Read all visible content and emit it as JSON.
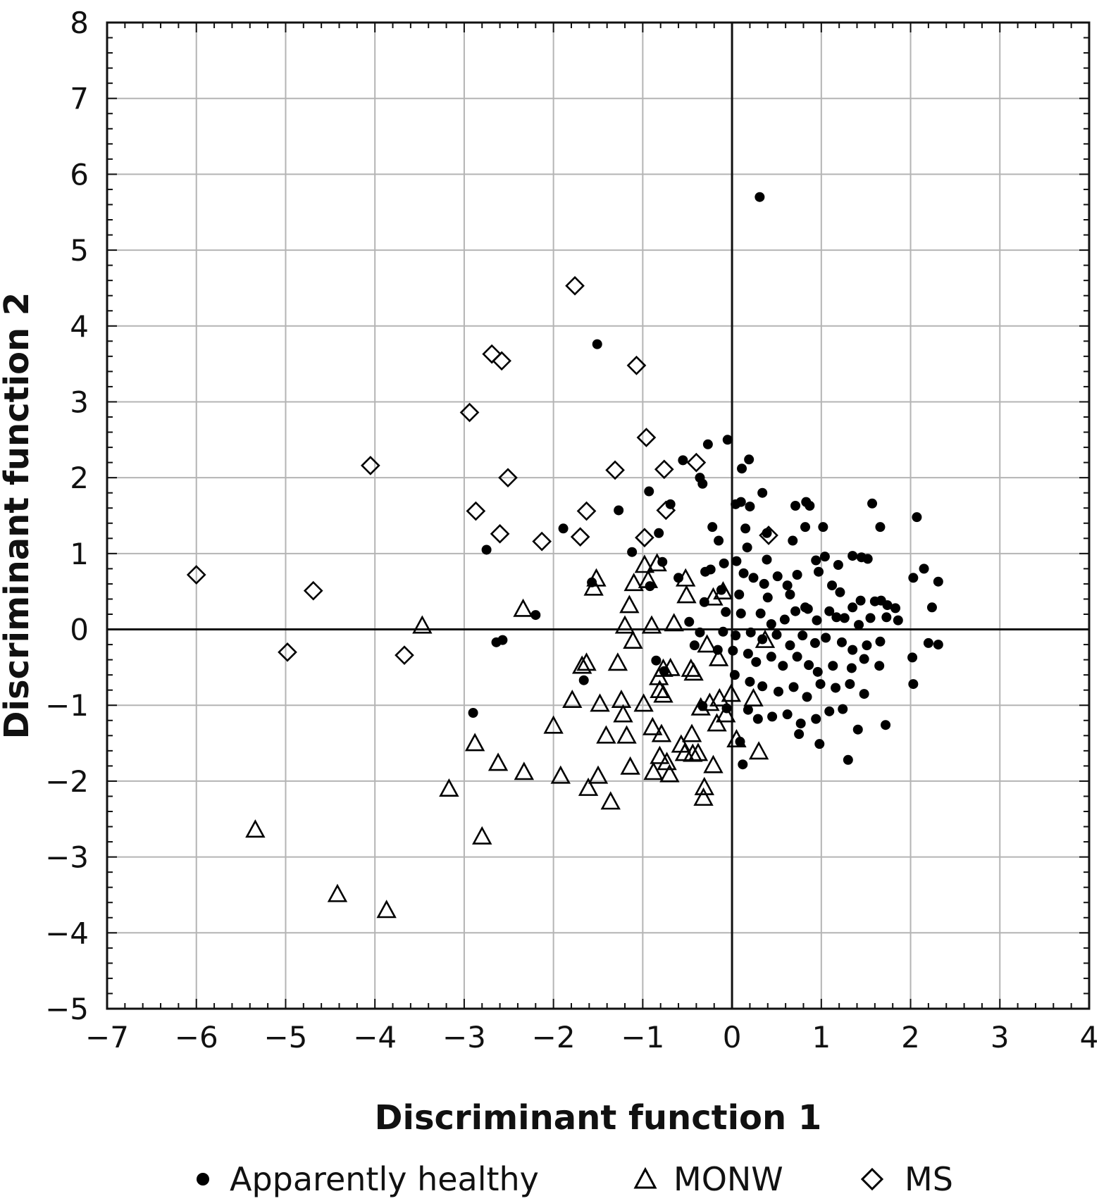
{
  "chart_data": {
    "type": "scatter",
    "title": "",
    "xlabel": "Discriminant function 1",
    "ylabel": "Discriminant function 2",
    "xlim": [
      -7,
      4
    ],
    "ylim": [
      -5,
      8
    ],
    "xticks": [
      -7,
      -6,
      -5,
      -4,
      -3,
      -2,
      -1,
      0,
      1,
      2,
      3,
      4
    ],
    "yticks": [
      -5,
      -4,
      -3,
      -2,
      -1,
      0,
      1,
      2,
      3,
      4,
      5,
      6,
      7,
      8
    ],
    "xtick_labels": [
      "−7",
      "−6",
      "−5",
      "−4",
      "−3",
      "−2",
      "−1",
      "0",
      "1",
      "2",
      "3",
      "4"
    ],
    "ytick_labels": [
      "−5",
      "−4",
      "−3",
      "−2",
      "−1",
      "0",
      "1",
      "2",
      "3",
      "4",
      "5",
      "6",
      "7",
      "8"
    ],
    "grid": true,
    "zero_lines": true,
    "legend_position": "bottom",
    "colors": {
      "marker": "#000000",
      "grid": "#b4b4b4",
      "axis": "#111111"
    },
    "series": [
      {
        "name": "Apparently healthy",
        "marker": "filled-circle",
        "points": [
          [
            0.31,
            5.7
          ],
          [
            -1.51,
            3.76
          ],
          [
            -0.27,
            2.44
          ],
          [
            -0.05,
            2.5
          ],
          [
            -0.55,
            2.23
          ],
          [
            0.19,
            2.24
          ],
          [
            0.11,
            2.12
          ],
          [
            -0.36,
            2.0
          ],
          [
            -0.33,
            1.92
          ],
          [
            -0.93,
            1.82
          ],
          [
            0.34,
            1.8
          ],
          [
            0.2,
            1.62
          ],
          [
            -0.69,
            1.65
          ],
          [
            0.1,
            1.68
          ],
          [
            0.04,
            1.65
          ],
          [
            -1.27,
            1.57
          ],
          [
            -0.82,
            1.27
          ],
          [
            -0.22,
            1.35
          ],
          [
            0.15,
            1.33
          ],
          [
            0.87,
            1.63
          ],
          [
            0.83,
            1.68
          ],
          [
            0.71,
            1.63
          ],
          [
            1.57,
            1.66
          ],
          [
            2.07,
            1.48
          ],
          [
            1.66,
            1.35
          ],
          [
            1.02,
            1.35
          ],
          [
            0.82,
            1.35
          ],
          [
            0.68,
            1.17
          ],
          [
            0.39,
            1.27
          ],
          [
            -1.89,
            1.33
          ],
          [
            -2.75,
            1.05
          ],
          [
            -1.12,
            1.02
          ],
          [
            -0.15,
            1.17
          ],
          [
            0.17,
            1.08
          ],
          [
            0.39,
            0.92
          ],
          [
            0.05,
            0.9
          ],
          [
            -0.09,
            0.87
          ],
          [
            -0.24,
            0.79
          ],
          [
            -0.78,
            0.89
          ],
          [
            -0.6,
            0.68
          ],
          [
            -0.3,
            0.76
          ],
          [
            0.13,
            0.74
          ],
          [
            0.24,
            0.68
          ],
          [
            0.36,
            0.6
          ],
          [
            0.51,
            0.7
          ],
          [
            0.62,
            0.58
          ],
          [
            0.73,
            0.72
          ],
          [
            0.94,
            0.91
          ],
          [
            1.04,
            0.96
          ],
          [
            1.19,
            0.85
          ],
          [
            1.35,
            0.97
          ],
          [
            1.45,
            0.95
          ],
          [
            1.52,
            0.93
          ],
          [
            2.15,
            0.8
          ],
          [
            2.03,
            0.68
          ],
          [
            2.31,
            0.63
          ],
          [
            0.97,
            0.76
          ],
          [
            1.12,
            0.58
          ],
          [
            1.21,
            0.49
          ],
          [
            1.44,
            0.38
          ],
          [
            1.6,
            0.37
          ],
          [
            1.67,
            0.38
          ],
          [
            1.74,
            0.32
          ],
          [
            1.83,
            0.28
          ],
          [
            2.24,
            0.29
          ],
          [
            1.35,
            0.29
          ],
          [
            1.17,
            0.16
          ],
          [
            0.82,
            0.29
          ],
          [
            0.65,
            0.46
          ],
          [
            0.4,
            0.42
          ],
          [
            0.08,
            0.46
          ],
          [
            -0.12,
            0.52
          ],
          [
            -0.31,
            0.36
          ],
          [
            -0.07,
            0.23
          ],
          [
            0.1,
            0.21
          ],
          [
            0.32,
            0.21
          ],
          [
            0.44,
            0.07
          ],
          [
            0.59,
            0.13
          ],
          [
            0.71,
            0.24
          ],
          [
            0.85,
            0.27
          ],
          [
            0.95,
            0.12
          ],
          [
            1.09,
            0.24
          ],
          [
            1.26,
            0.15
          ],
          [
            1.42,
            0.06
          ],
          [
            1.55,
            0.15
          ],
          [
            1.73,
            0.16
          ],
          [
            1.86,
            0.12
          ],
          [
            -1.57,
            0.62
          ],
          [
            -0.92,
            0.57
          ],
          [
            -2.2,
            0.19
          ],
          [
            -0.48,
            0.1
          ],
          [
            -0.36,
            -0.04
          ],
          [
            -0.1,
            -0.03
          ],
          [
            0.04,
            -0.08
          ],
          [
            0.21,
            -0.04
          ],
          [
            0.34,
            -0.13
          ],
          [
            0.5,
            -0.07
          ],
          [
            0.65,
            -0.21
          ],
          [
            0.79,
            -0.08
          ],
          [
            0.93,
            -0.18
          ],
          [
            1.05,
            -0.11
          ],
          [
            1.23,
            -0.17
          ],
          [
            1.35,
            -0.27
          ],
          [
            1.51,
            -0.21
          ],
          [
            1.66,
            -0.16
          ],
          [
            2.2,
            -0.18
          ],
          [
            2.31,
            -0.2
          ],
          [
            -2.64,
            -0.17
          ],
          [
            -2.57,
            -0.14
          ],
          [
            -0.42,
            -0.21
          ],
          [
            -0.16,
            -0.27
          ],
          [
            0.01,
            -0.28
          ],
          [
            0.18,
            -0.32
          ],
          [
            0.27,
            -0.43
          ],
          [
            0.44,
            -0.36
          ],
          [
            0.57,
            -0.48
          ],
          [
            0.73,
            -0.36
          ],
          [
            0.86,
            -0.47
          ],
          [
            0.96,
            -0.56
          ],
          [
            1.13,
            -0.48
          ],
          [
            1.34,
            -0.51
          ],
          [
            1.48,
            -0.39
          ],
          [
            1.65,
            -0.48
          ],
          [
            2.02,
            -0.37
          ],
          [
            -0.85,
            -0.41
          ],
          [
            -1.66,
            -0.67
          ],
          [
            -0.76,
            -0.55
          ],
          [
            0.03,
            -0.6
          ],
          [
            0.2,
            -0.69
          ],
          [
            0.34,
            -0.75
          ],
          [
            0.52,
            -0.82
          ],
          [
            0.69,
            -0.76
          ],
          [
            0.84,
            -0.89
          ],
          [
            0.99,
            -0.72
          ],
          [
            1.16,
            -0.77
          ],
          [
            1.32,
            -0.72
          ],
          [
            1.48,
            -0.85
          ],
          [
            2.03,
            -0.72
          ],
          [
            -2.9,
            -1.1
          ],
          [
            -0.33,
            -1.01
          ],
          [
            -0.06,
            -1.04
          ],
          [
            0.18,
            -1.06
          ],
          [
            0.29,
            -1.18
          ],
          [
            0.45,
            -1.15
          ],
          [
            0.62,
            -1.12
          ],
          [
            0.77,
            -1.24
          ],
          [
            0.94,
            -1.18
          ],
          [
            1.09,
            -1.08
          ],
          [
            1.24,
            -1.05
          ],
          [
            1.41,
            -1.32
          ],
          [
            1.72,
            -1.26
          ],
          [
            0.09,
            -1.48
          ],
          [
            0.75,
            -1.38
          ],
          [
            0.98,
            -1.51
          ],
          [
            0.12,
            -1.78
          ],
          [
            1.3,
            -1.72
          ]
        ]
      },
      {
        "name": "MONW",
        "marker": "open-triangle",
        "points": [
          [
            -0.98,
            0.85
          ],
          [
            -0.84,
            0.87
          ],
          [
            -0.94,
            0.65
          ],
          [
            -0.52,
            0.67
          ],
          [
            -1.52,
            0.67
          ],
          [
            -1.55,
            0.55
          ],
          [
            -1.1,
            0.61
          ],
          [
            -0.51,
            0.45
          ],
          [
            -0.21,
            0.42
          ],
          [
            -0.1,
            0.5
          ],
          [
            -2.34,
            0.27
          ],
          [
            -1.15,
            0.32
          ],
          [
            -0.9,
            0.05
          ],
          [
            -0.65,
            0.08
          ],
          [
            -3.47,
            0.05
          ],
          [
            -1.2,
            0.05
          ],
          [
            -1.11,
            -0.15
          ],
          [
            -0.28,
            -0.2
          ],
          [
            -0.15,
            -0.38
          ],
          [
            0.37,
            -0.14
          ],
          [
            -1.63,
            -0.44
          ],
          [
            -1.68,
            -0.48
          ],
          [
            -1.28,
            -0.44
          ],
          [
            -0.77,
            -0.52
          ],
          [
            -0.69,
            -0.51
          ],
          [
            -0.46,
            -0.52
          ],
          [
            -0.43,
            -0.57
          ],
          [
            -0.81,
            -0.8
          ],
          [
            -0.77,
            -0.86
          ],
          [
            -0.82,
            -0.63
          ],
          [
            -1.79,
            -0.93
          ],
          [
            -1.48,
            -0.98
          ],
          [
            -1.24,
            -0.93
          ],
          [
            -0.99,
            -0.98
          ],
          [
            -0.25,
            -0.97
          ],
          [
            -0.14,
            -0.91
          ],
          [
            -0.01,
            -0.85
          ],
          [
            0.24,
            -0.91
          ],
          [
            -1.22,
            -1.12
          ],
          [
            -0.35,
            -1.03
          ],
          [
            -0.07,
            -1.12
          ],
          [
            -2.0,
            -1.27
          ],
          [
            -1.41,
            -1.4
          ],
          [
            -1.18,
            -1.4
          ],
          [
            -0.89,
            -1.29
          ],
          [
            -0.79,
            -1.38
          ],
          [
            -0.45,
            -1.38
          ],
          [
            -0.17,
            -1.24
          ],
          [
            0.05,
            -1.45
          ],
          [
            -2.88,
            -1.5
          ],
          [
            -0.57,
            -1.52
          ],
          [
            -0.53,
            -1.63
          ],
          [
            -0.44,
            -1.64
          ],
          [
            -0.38,
            -1.63
          ],
          [
            -0.81,
            -1.67
          ],
          [
            -0.73,
            -1.75
          ],
          [
            -2.62,
            -1.76
          ],
          [
            -2.33,
            -1.88
          ],
          [
            -1.92,
            -1.93
          ],
          [
            -1.5,
            -1.93
          ],
          [
            -1.14,
            -1.81
          ],
          [
            -0.88,
            -1.88
          ],
          [
            -0.7,
            -1.91
          ],
          [
            -0.21,
            -1.79
          ],
          [
            0.3,
            -1.61
          ],
          [
            -3.17,
            -2.1
          ],
          [
            -1.61,
            -2.09
          ],
          [
            -1.36,
            -2.27
          ],
          [
            -0.31,
            -2.08
          ],
          [
            -0.32,
            -2.22
          ],
          [
            -2.8,
            -2.73
          ],
          [
            -5.34,
            -2.64
          ],
          [
            -4.42,
            -3.49
          ],
          [
            -3.87,
            -3.7
          ]
        ]
      },
      {
        "name": "MS",
        "marker": "open-diamond",
        "points": [
          [
            -1.76,
            4.53
          ],
          [
            -2.69,
            3.63
          ],
          [
            -2.58,
            3.54
          ],
          [
            -1.07,
            3.48
          ],
          [
            -2.94,
            2.86
          ],
          [
            -0.96,
            2.53
          ],
          [
            -4.05,
            2.16
          ],
          [
            -1.31,
            2.1
          ],
          [
            -0.76,
            2.11
          ],
          [
            -0.4,
            2.2
          ],
          [
            -2.51,
            2.0
          ],
          [
            -2.87,
            1.56
          ],
          [
            -1.63,
            1.56
          ],
          [
            -0.74,
            1.57
          ],
          [
            -2.6,
            1.26
          ],
          [
            -1.7,
            1.22
          ],
          [
            -2.13,
            1.16
          ],
          [
            -0.98,
            1.21
          ],
          [
            0.41,
            1.24
          ],
          [
            -6.0,
            0.72
          ],
          [
            -4.69,
            0.51
          ],
          [
            -4.98,
            -0.3
          ],
          [
            -3.67,
            -0.34
          ]
        ]
      }
    ]
  }
}
